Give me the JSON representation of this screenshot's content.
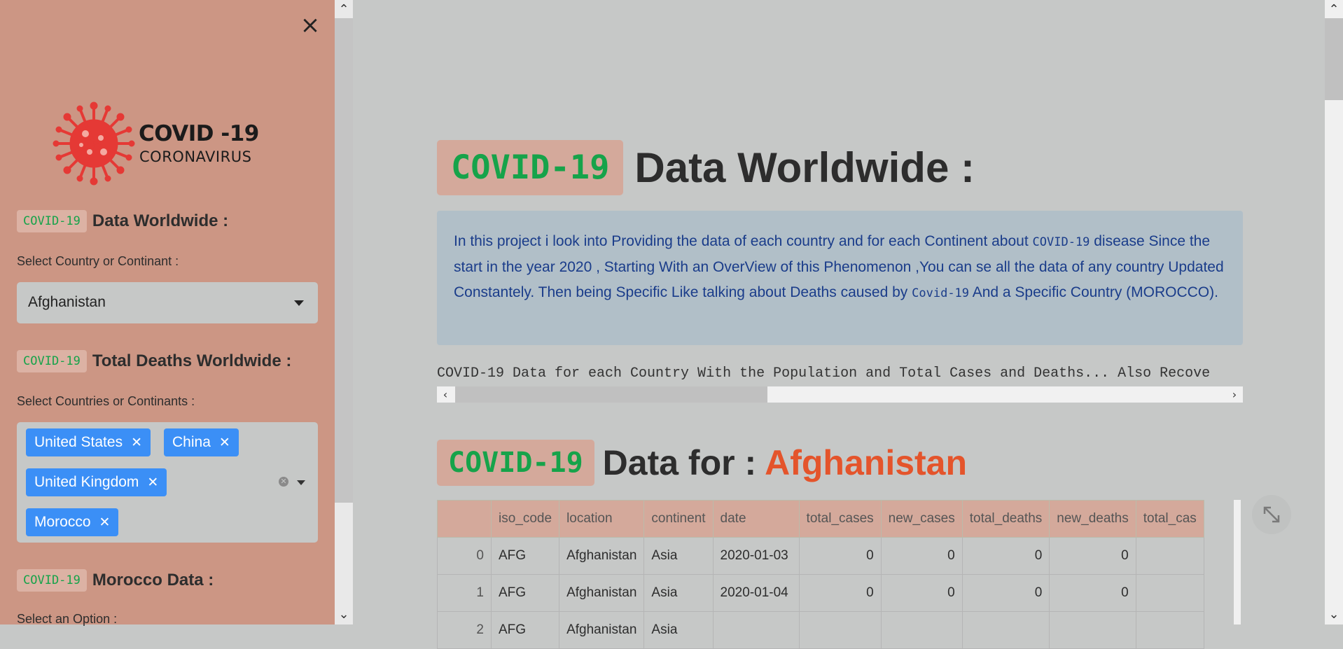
{
  "sidebar": {
    "logo": {
      "title": "COVID -19",
      "subtitle": "CORONAVIRUS"
    },
    "section1": {
      "badge": "COVID-19",
      "title": "Data Worldwide :",
      "label": "Select Country or Continant :",
      "selected": "Afghanistan"
    },
    "section2": {
      "badge": "COVID-19",
      "title": "Total Deaths Worldwide :",
      "label": "Select Countries or Continants :",
      "chips": [
        "United States",
        "China",
        "United Kingdom",
        "Morocco"
      ]
    },
    "section3": {
      "badge": "COVID-19",
      "title": "Morocco Data :",
      "label": "Select an Option :"
    }
  },
  "main": {
    "title_badge": "COVID-19",
    "title": "Data Worldwide :",
    "info": {
      "part1": "In this project i look into Providing the data of each country and for each Continent about ",
      "code1": "COVID-19",
      "part2": " disease Since the start in the year 2020 , Starting With an OverView of this Phenomenon ,You can se all the data of any country Updated Constantely. Then being Specific Like talking about Deaths caused by ",
      "code2": "Covid-19",
      "part3": " And a Specific Country (MOROCCO)."
    },
    "mono_line": "COVID-19 Data for each Country With the Population and Total Cases and Deaths... Also Recove",
    "sub_badge": "COVID-19",
    "sub_title": "Data for :",
    "sub_country": "Afghanistan",
    "table": {
      "columns": [
        "",
        "iso_code",
        "location",
        "continent",
        "date",
        "total_cases",
        "new_cases",
        "total_deaths",
        "new_deaths",
        "total_cas"
      ],
      "rows": [
        [
          "0",
          "AFG",
          "Afghanistan",
          "Asia",
          "2020-01-03",
          "0",
          "0",
          "0",
          "0",
          ""
        ],
        [
          "1",
          "AFG",
          "Afghanistan",
          "Asia",
          "2020-01-04",
          "0",
          "0",
          "0",
          "0",
          ""
        ],
        [
          "2",
          "AFG",
          "Afghanistan",
          "Asia",
          "",
          "",
          "",
          "",
          "",
          ""
        ]
      ]
    }
  },
  "colors": {
    "sidebar_bg": "#cc9684",
    "main_bg": "#c6c8c7",
    "badge_green": "#16a34a",
    "chip_blue": "#3b8ff6",
    "country_red": "#e4542b",
    "info_bg": "#b1bfc8",
    "info_text": "#1a3c8a"
  }
}
